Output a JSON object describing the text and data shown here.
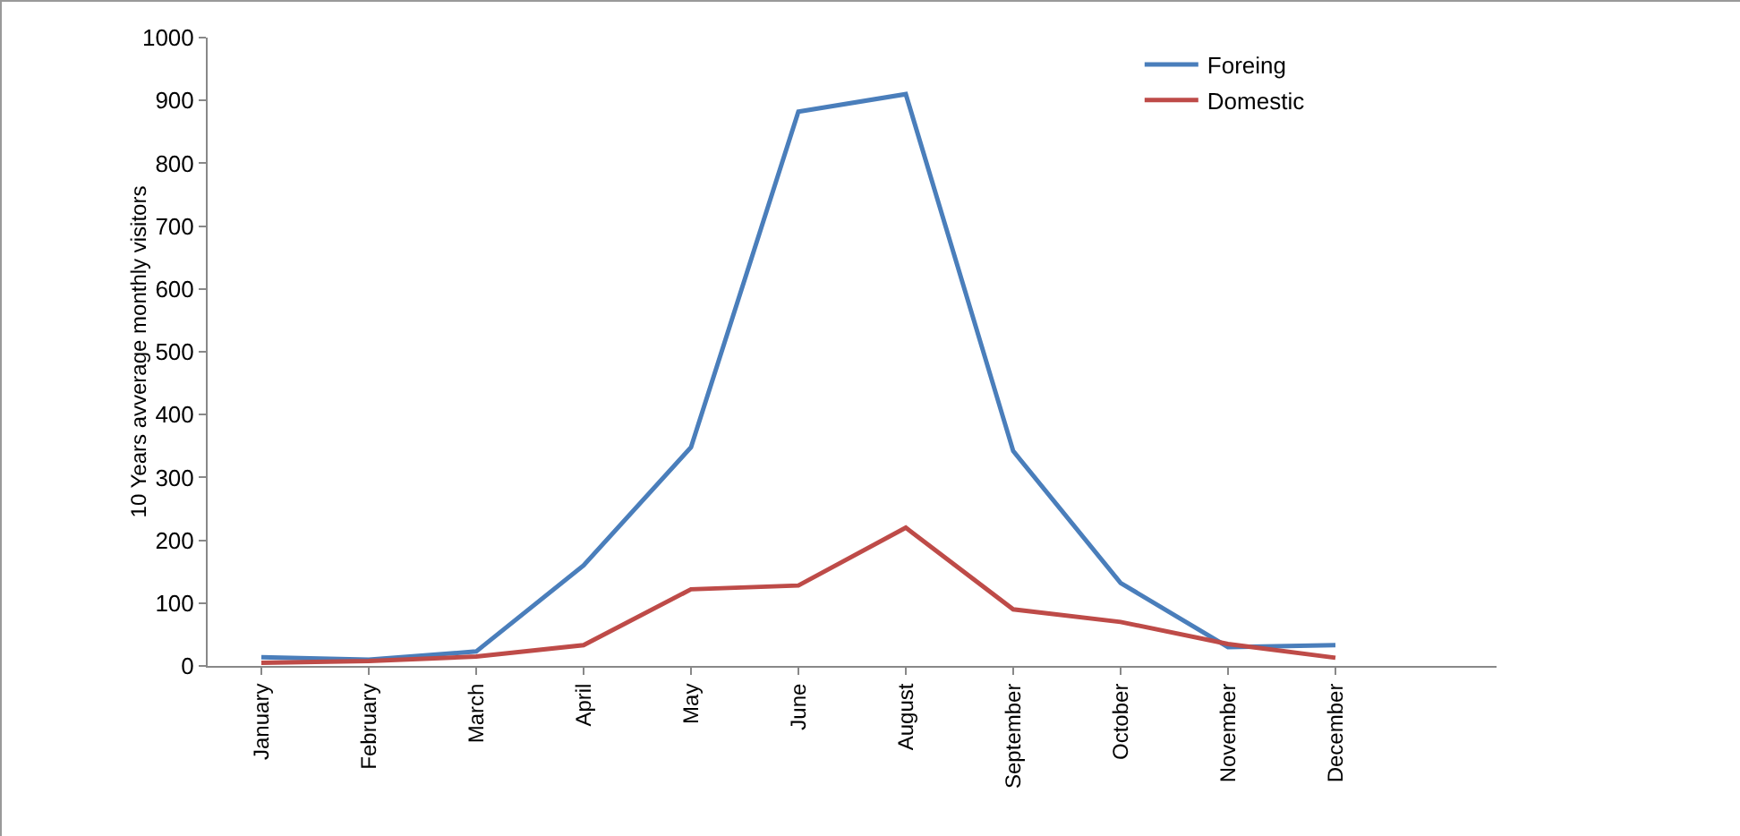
{
  "chart_data": {
    "type": "line",
    "ylabel": "10 Years avverage monthly visitors",
    "categories": [
      "January",
      "February",
      "March",
      "April",
      "May",
      "June",
      "August",
      "September",
      "October",
      "November",
      "December"
    ],
    "series": [
      {
        "name": "Foreing",
        "color": "#4a7ebb",
        "values": [
          14,
          10,
          23,
          160,
          348,
          882,
          910,
          342,
          132,
          30,
          33
        ]
      },
      {
        "name": "Domestic",
        "color": "#be4b48",
        "values": [
          5,
          8,
          15,
          33,
          122,
          128,
          220,
          90,
          70,
          35,
          13
        ]
      }
    ],
    "ylim": [
      0,
      1000
    ],
    "yticks": [
      0,
      100,
      200,
      300,
      400,
      500,
      600,
      700,
      800,
      900,
      1000
    ],
    "legend": "top right",
    "marker": "none",
    "line_style": "solid"
  }
}
